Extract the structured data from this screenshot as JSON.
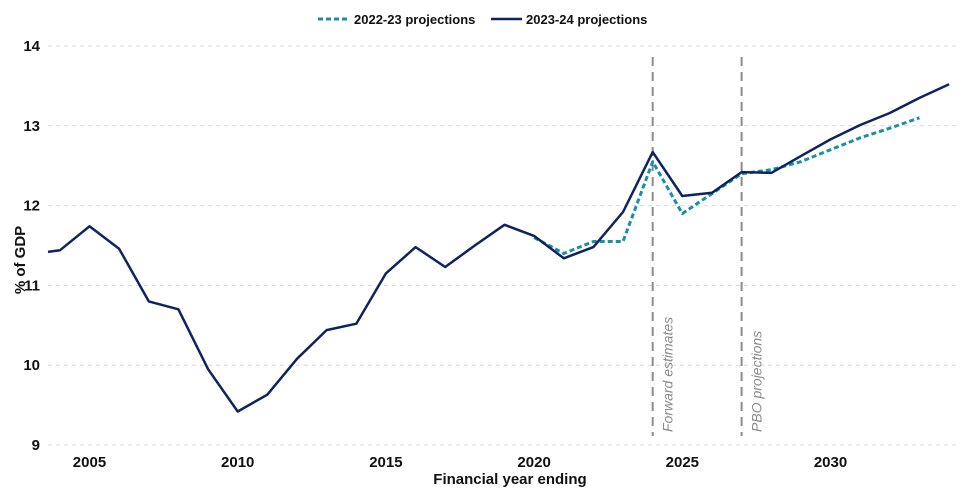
{
  "chart_data": {
    "type": "line",
    "title": "",
    "xlabel": "Financial year ending",
    "ylabel": "% of GDP",
    "xlim": [
      2003.6,
      2034.3
    ],
    "ylim": [
      9,
      14
    ],
    "x_ticks": [
      2005,
      2010,
      2015,
      2020,
      2025,
      2030
    ],
    "y_ticks": [
      9,
      10,
      11,
      12,
      13,
      14
    ],
    "grid": "horizontal-dashed",
    "legend_position": "top-center",
    "series": [
      {
        "name": "2022-23 projections",
        "style": "dashed",
        "color": "#1a8fa8",
        "x": [
          2020,
          2021,
          2022,
          2023,
          2024,
          2025,
          2026,
          2027,
          2028,
          2029,
          2030,
          2031,
          2032,
          2033
        ],
        "y": [
          11.6,
          11.4,
          11.55,
          11.55,
          12.55,
          11.9,
          12.15,
          12.4,
          12.45,
          12.55,
          12.7,
          12.85,
          12.97,
          13.1
        ]
      },
      {
        "name": "2023-24 projections",
        "style": "solid",
        "color": "#0d2461",
        "x": [
          2003.6,
          2004,
          2005,
          2006,
          2007,
          2008,
          2009,
          2010,
          2011,
          2012,
          2013,
          2014,
          2015,
          2016,
          2017,
          2018,
          2019,
          2020,
          2021,
          2022,
          2023,
          2024,
          2025,
          2026,
          2027,
          2028,
          2029,
          2030,
          2031,
          2032,
          2033,
          2034
        ],
        "y": [
          11.42,
          11.44,
          11.74,
          11.46,
          10.8,
          10.7,
          9.95,
          9.42,
          9.63,
          10.08,
          10.44,
          10.52,
          11.15,
          11.48,
          11.23,
          11.5,
          11.76,
          11.62,
          11.34,
          11.48,
          11.92,
          12.67,
          12.12,
          12.16,
          12.42,
          12.41,
          12.62,
          12.83,
          13.01,
          13.16,
          13.35,
          13.52
        ]
      }
    ],
    "annotations": [
      {
        "x": 2024,
        "label": "Forward estimates"
      },
      {
        "x": 2027,
        "label": "PBO projections"
      }
    ]
  }
}
